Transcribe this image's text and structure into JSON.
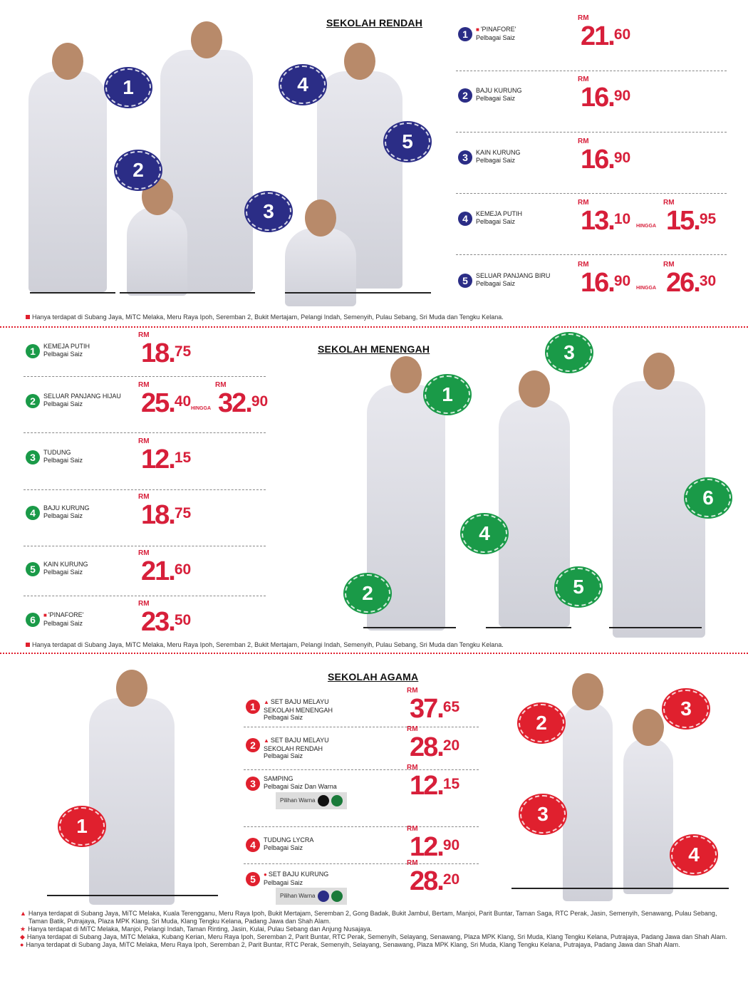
{
  "colors": {
    "rendah": "#2b2d86",
    "menengah": "#1a9a48",
    "agama": "#e0202e",
    "price": "#d71f3a"
  },
  "currency": "RM",
  "hingga": "HINGGA",
  "sekolah_rendah": {
    "title": "SEKOLAH RENDAH",
    "items": [
      {
        "num": "1",
        "mark": "square",
        "name": "'PINAFORE'",
        "sub": "Pelbagai Saiz",
        "prices": [
          {
            "main": "21.",
            "cents": "60"
          }
        ]
      },
      {
        "num": "2",
        "name": "BAJU KURUNG",
        "sub": "Pelbagai Saiz",
        "prices": [
          {
            "main": "16.",
            "cents": "90"
          }
        ]
      },
      {
        "num": "3",
        "name": "KAIN KURUNG",
        "sub": "Pelbagai Saiz",
        "prices": [
          {
            "main": "16.",
            "cents": "90"
          }
        ]
      },
      {
        "num": "4",
        "name": "KEMEJA PUTIH",
        "sub": "Pelbagai Saiz",
        "prices": [
          {
            "main": "13.",
            "cents": "10"
          },
          {
            "main": "15.",
            "cents": "95"
          }
        ]
      },
      {
        "num": "5",
        "name": "SELUAR PANJANG BIRU",
        "sub": "Pelbagai Saiz",
        "prices": [
          {
            "main": "16.",
            "cents": "90"
          },
          {
            "main": "26.",
            "cents": "30"
          }
        ]
      }
    ],
    "bubbles": [
      "1",
      "2",
      "3",
      "4",
      "5"
    ],
    "note": "Hanya terdapat di Subang Jaya, MiTC Melaka, Meru Raya Ipoh, Seremban 2, Bukit Mertajam, Pelangi Indah, Semenyih, Pulau Sebang, Sri Muda dan Tengku Kelana."
  },
  "sekolah_menengah": {
    "title": "SEKOLAH MENENGAH",
    "items": [
      {
        "num": "1",
        "name": "KEMEJA PUTIH",
        "sub": "Pelbagai Saiz",
        "prices": [
          {
            "main": "18.",
            "cents": "75"
          }
        ]
      },
      {
        "num": "2",
        "name": "SELUAR PANJANG HIJAU",
        "sub": "Pelbagai Saiz",
        "prices": [
          {
            "main": "25.",
            "cents": "40"
          },
          {
            "main": "32.",
            "cents": "90"
          }
        ]
      },
      {
        "num": "3",
        "name": "TUDUNG",
        "sub": "Pelbagai Saiz",
        "prices": [
          {
            "main": "12.",
            "cents": "15"
          }
        ]
      },
      {
        "num": "4",
        "name": "BAJU KURUNG",
        "sub": "Pelbagai Saiz",
        "prices": [
          {
            "main": "18.",
            "cents": "75"
          }
        ]
      },
      {
        "num": "5",
        "name": "KAIN KURUNG",
        "sub": "Pelbagai Saiz",
        "prices": [
          {
            "main": "21.",
            "cents": "60"
          }
        ]
      },
      {
        "num": "6",
        "mark": "square",
        "name": "'PINAFORE'",
        "sub": "Pelbagai Saiz",
        "prices": [
          {
            "main": "23.",
            "cents": "50"
          }
        ]
      }
    ],
    "bubbles": [
      "1",
      "2",
      "3",
      "4",
      "5",
      "6"
    ],
    "note": "Hanya terdapat di Subang Jaya, MiTC Melaka, Meru Raya Ipoh, Seremban 2, Bukit Mertajam, Pelangi Indah, Semenyih, Pulau Sebang, Sri Muda dan Tengku Kelana."
  },
  "sekolah_agama": {
    "title": "SEKOLAH AGAMA",
    "items": [
      {
        "num": "1",
        "mark": "triangle",
        "name": "SET BAJU MELAYU SEKOLAH MENENGAH",
        "sub": "Pelbagai Saiz",
        "prices": [
          {
            "main": "37.",
            "cents": "65"
          }
        ]
      },
      {
        "num": "2",
        "mark": "triangle",
        "name": "SET BAJU MELAYU SEKOLAH RENDAH",
        "sub": "Pelbagai Saiz",
        "prices": [
          {
            "main": "28.",
            "cents": "20"
          }
        ]
      },
      {
        "num": "3",
        "name": "SAMPING",
        "sub": "Pelbagai Saiz Dan Warna",
        "prices": [
          {
            "main": "12.",
            "cents": "15"
          }
        ],
        "swatch": {
          "label": "Pilihan Warna",
          "colors": [
            "#111111",
            "#1a7a3a"
          ]
        }
      },
      {
        "num": "4",
        "name": "TUDUNG LYCRA",
        "sub": "Pelbagai Saiz",
        "prices": [
          {
            "main": "12.",
            "cents": "90"
          }
        ]
      },
      {
        "num": "5",
        "mark": "circle",
        "name": "SET BAJU KURUNG",
        "sub": "Pelbagai Saiz",
        "prices": [
          {
            "main": "28.",
            "cents": "20"
          }
        ],
        "swatch": {
          "label": "Pilihan Warna",
          "colors": [
            "#2b2d86",
            "#1a7a3a"
          ]
        }
      }
    ],
    "bubbles": [
      "1",
      "2",
      "3",
      "3",
      "4"
    ],
    "notes": [
      {
        "mark": "▲",
        "text": "Hanya terdapat di Subang Jaya, MiTC Melaka, Kuala Terengganu, Meru Raya Ipoh, Bukit Mertajam, Seremban 2, Gong Badak, Bukit Jambul, Bertam, Manjoi, Parit Buntar, Taman Saga, RTC Perak, Jasin, Semenyih, Senawang, Pulau Sebang, Taman Batik, Putrajaya, Plaza MPK Klang, Sri Muda, Klang Tengku Kelana, Padang Jawa dan Shah Alam."
      },
      {
        "mark": "★",
        "text": "Hanya terdapat di MiTC Melaka, Manjoi, Pelangi Indah, Taman Rinting, Jasin, Kulai, Pulau Sebang dan Anjung Nusajaya."
      },
      {
        "mark": "◆",
        "text": "Hanya terdapat di Subang Jaya, MiTC Melaka, Kubang Kerian, Meru Raya Ipoh, Seremban 2, Parit Buntar, RTC Perak, Semenyih, Selayang, Senawang, Plaza MPK Klang, Sri Muda, Klang Tengku Kelana, Putrajaya, Padang Jawa dan Shah Alam."
      },
      {
        "mark": "●",
        "text": "Hanya terdapat di Subang Jaya, MiTC Melaka, Meru Raya Ipoh, Seremban 2, Parit Buntar, RTC Perak, Semenyih, Selayang, Senawang, Plaza MPK Klang, Sri Muda, Klang Tengku Kelana, Putrajaya, Padang Jawa dan Shah Alam."
      }
    ]
  }
}
